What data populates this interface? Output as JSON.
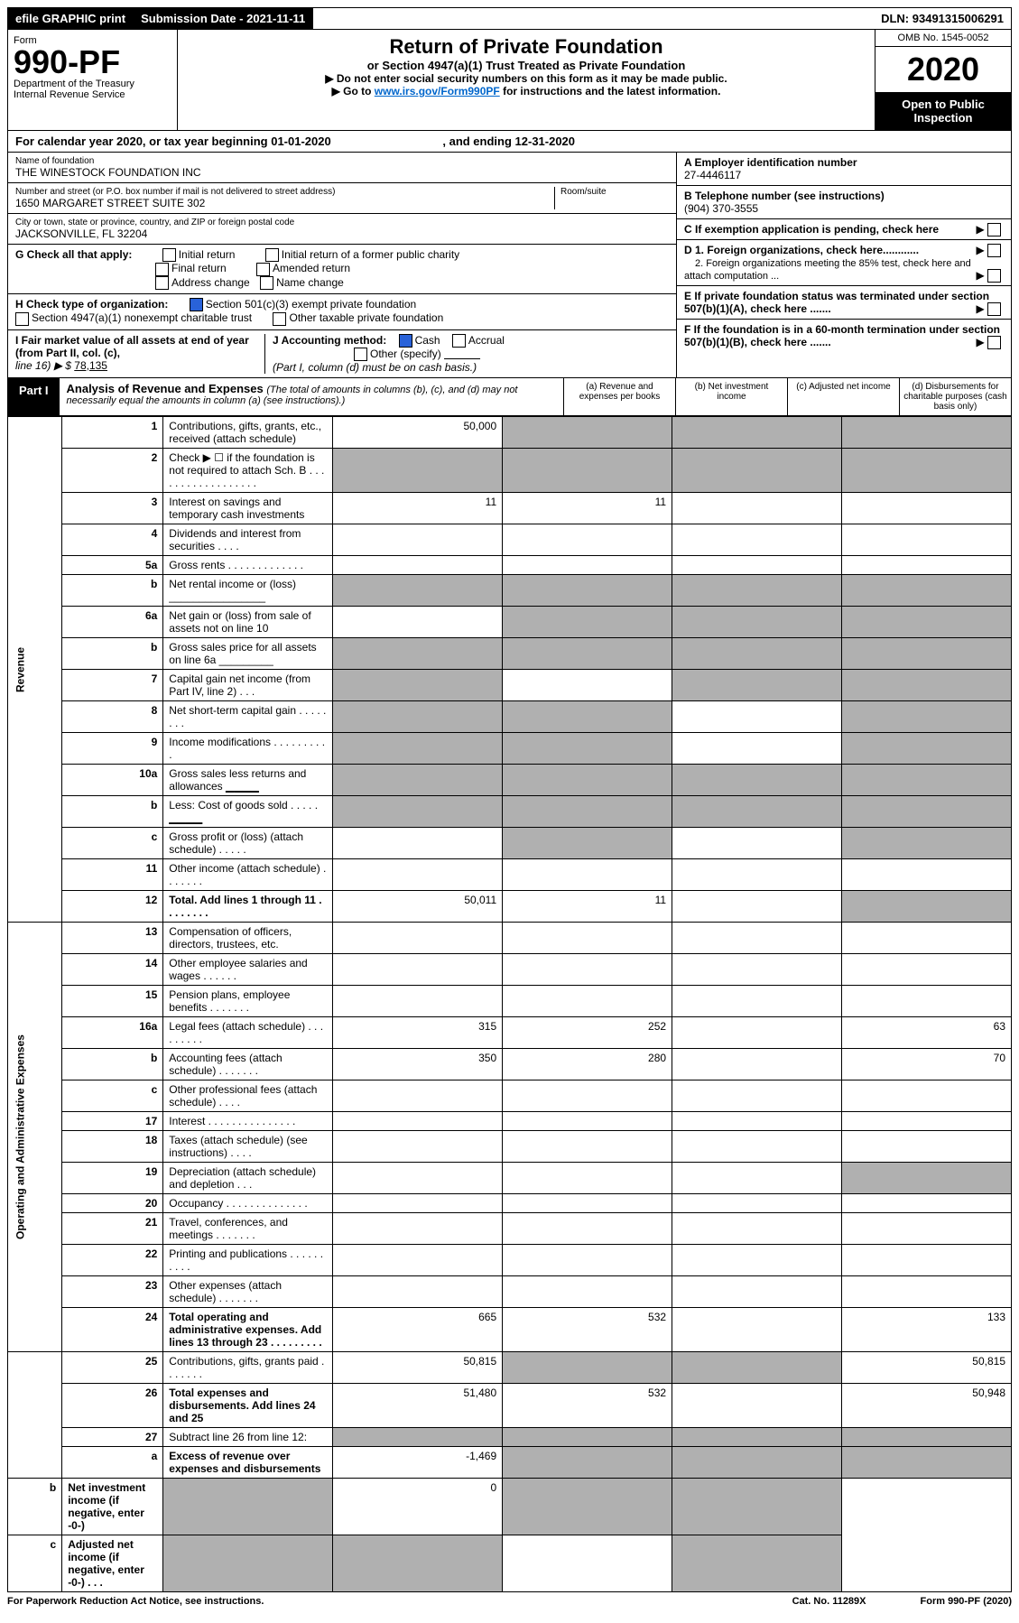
{
  "top": {
    "efile": "efile GRAPHIC print",
    "subdate_lbl": "Submission Date - ",
    "subdate": "2021-11-11",
    "dln_lbl": "DLN: ",
    "dln": "93491315006291"
  },
  "header": {
    "form_lbl": "Form",
    "form_no": "990-PF",
    "dept1": "Department of the Treasury",
    "dept2": "Internal Revenue Service",
    "title": "Return of Private Foundation",
    "subtitle": "or Section 4947(a)(1) Trust Treated as Private Foundation",
    "instr1": "▶ Do not enter social security numbers on this form as it may be made public.",
    "instr2a": "▶ Go to ",
    "instr2_link": "www.irs.gov/Form990PF",
    "instr2b": " for instructions and the latest information.",
    "omb": "OMB No. 1545-0052",
    "year": "2020",
    "open": "Open to Public Inspection"
  },
  "calyr": {
    "a": "For calendar year 2020, or tax year beginning 01-01-2020",
    "b": ", and ending 12-31-2020"
  },
  "id": {
    "name_lbl": "Name of foundation",
    "name": "THE WINESTOCK FOUNDATION INC",
    "addr_lbl": "Number and street (or P.O. box number if mail is not delivered to street address)",
    "addr": "1650 MARGARET STREET SUITE 302",
    "room_lbl": "Room/suite",
    "city_lbl": "City or town, state or province, country, and ZIP or foreign postal code",
    "city": "JACKSONVILLE, FL  32204",
    "ein_lbl": "A Employer identification number",
    "ein": "27-4446117",
    "tel_lbl": "B Telephone number (see instructions)",
    "tel": "(904) 370-3555",
    "c": "C  If exemption application is pending, check here",
    "d1": "D 1. Foreign organizations, check here............",
    "d2": "2. Foreign organizations meeting the 85% test, check here and attach computation ...",
    "e": "E  If private foundation status was terminated under section 507(b)(1)(A), check here .......",
    "f": "F  If the foundation is in a 60-month termination under section 507(b)(1)(B), check here .......",
    "g_lbl": "G Check all that apply:",
    "g_opts": [
      "Initial return",
      "Final return",
      "Address change",
      "Initial return of a former public charity",
      "Amended return",
      "Name change"
    ],
    "h_lbl": "H Check type of organization:",
    "h_opts": [
      "Section 501(c)(3) exempt private foundation",
      "Section 4947(a)(1) nonexempt charitable trust",
      "Other taxable private foundation"
    ],
    "i_lbl": "I Fair market value of all assets at end of year (from Part II, col. (c),",
    "i_line16": "line 16) ▶ $",
    "i_val": "78,135",
    "j_lbl": "J Accounting method:",
    "j_opts": [
      "Cash",
      "Accrual",
      "Other (specify)"
    ],
    "j_note": "(Part I, column (d) must be on cash basis.)"
  },
  "part1": {
    "tag": "Part I",
    "title": "Analysis of Revenue and Expenses ",
    "note": "(The total of amounts in columns (b), (c), and (d) may not necessarily equal the amounts in column (a) (see instructions).)",
    "cols": [
      "(a)   Revenue and expenses per books",
      "(b)   Net investment income",
      "(c)   Adjusted net income",
      "(d)   Disbursements for charitable purposes (cash basis only)"
    ]
  },
  "sections": {
    "rev": "Revenue",
    "op": "Operating and Administrative Expenses"
  },
  "rows": [
    {
      "n": "1",
      "d": "Contributions, gifts, grants, etc., received (attach schedule)",
      "a": "50,000",
      "grey": [
        1,
        2,
        3
      ]
    },
    {
      "n": "2",
      "d": "Check ▶ ☐ if the foundation is not required to attach Sch. B  .  .  .  .  .  .  .  .  .  .  .  .  .  .  .  .  .  .",
      "grey_all": true
    },
    {
      "n": "3",
      "d": "Interest on savings and temporary cash investments",
      "a": "11",
      "b": "11"
    },
    {
      "n": "4",
      "d": "Dividends and interest from securities   .   .   .   ."
    },
    {
      "n": "5a",
      "d": "Gross rents   .   .   .   .   .   .   .   .   .   .   .   .   ."
    },
    {
      "n": "b",
      "d": "Net rental income or (loss)  ________________",
      "grey_all": true
    },
    {
      "n": "6a",
      "d": "Net gain or (loss) from sale of assets not on line 10",
      "grey": [
        1,
        2,
        3
      ]
    },
    {
      "n": "b",
      "d": "Gross sales price for all assets on line 6a _________",
      "grey_all": true
    },
    {
      "n": "7",
      "d": "Capital gain net income (from Part IV, line 2)   .   .   .",
      "grey": [
        0,
        2,
        3
      ]
    },
    {
      "n": "8",
      "d": "Net short-term capital gain  .   .   .   .   .   .   .   .",
      "grey": [
        0,
        1,
        3
      ]
    },
    {
      "n": "9",
      "d": "Income modifications  .   .   .   .   .   .   .   .   .   .",
      "grey": [
        0,
        1,
        3
      ]
    },
    {
      "n": "10a",
      "d": "Gross sales less returns and allowances  ▁▁▁▁",
      "grey_all": true
    },
    {
      "n": "b",
      "d": "Less: Cost of goods sold   .   .   .   .   .  ▁▁▁▁",
      "grey_all": true
    },
    {
      "n": "c",
      "d": "Gross profit or (loss) (attach schedule)   .   .   .   .   .",
      "grey": [
        1,
        3
      ]
    },
    {
      "n": "11",
      "d": "Other income (attach schedule)   .   .   .   .   .   .   ."
    },
    {
      "n": "12",
      "d": "Total. Add lines 1 through 11  .   .   .   .   .   .   .   .",
      "bold": true,
      "a": "50,011",
      "b": "11",
      "grey": [
        3
      ]
    },
    {
      "n": "13",
      "d": "Compensation of officers, directors, trustees, etc."
    },
    {
      "n": "14",
      "d": "Other employee salaries and wages  .   .   .   .   .   ."
    },
    {
      "n": "15",
      "d": "Pension plans, employee benefits  .   .   .   .   .   .   ."
    },
    {
      "n": "16a",
      "d": "Legal fees (attach schedule) .   .   .   .   .   .   .   .   .",
      "a": "315",
      "b": "252",
      "dd": "63"
    },
    {
      "n": "b",
      "d": "Accounting fees (attach schedule)  .   .   .   .   .   .   .",
      "a": "350",
      "b": "280",
      "dd": "70"
    },
    {
      "n": "c",
      "d": "Other professional fees (attach schedule)   .   .   .   ."
    },
    {
      "n": "17",
      "d": "Interest  .   .   .   .   .   .   .   .   .   .   .   .   .   .   ."
    },
    {
      "n": "18",
      "d": "Taxes (attach schedule) (see instructions)   .   .   .   ."
    },
    {
      "n": "19",
      "d": "Depreciation (attach schedule) and depletion   .   .   .",
      "grey": [
        3
      ]
    },
    {
      "n": "20",
      "d": "Occupancy .   .   .   .   .   .   .   .   .   .   .   .   .   ."
    },
    {
      "n": "21",
      "d": "Travel, conferences, and meetings .   .   .   .   .   .   ."
    },
    {
      "n": "22",
      "d": "Printing and publications .   .   .   .   .   .   .   .   .   ."
    },
    {
      "n": "23",
      "d": "Other expenses (attach schedule)  .   .   .   .   .   .   ."
    },
    {
      "n": "24",
      "d": "Total operating and administrative expenses. Add lines 13 through 23  .   .   .   .   .   .   .   .   .",
      "bold": true,
      "a": "665",
      "b": "532",
      "dd": "133"
    },
    {
      "n": "25",
      "d": "Contributions, gifts, grants paid   .   .   .   .   .   .   .",
      "a": "50,815",
      "grey": [
        1,
        2
      ],
      "dd": "50,815"
    },
    {
      "n": "26",
      "d": "Total expenses and disbursements. Add lines 24 and 25",
      "bold": true,
      "a": "51,480",
      "b": "532",
      "dd": "50,948"
    },
    {
      "n": "27",
      "d": "Subtract line 26 from line 12:",
      "grey_all": true
    },
    {
      "n": "a",
      "d": "Excess of revenue over expenses and disbursements",
      "bold": true,
      "a": "-1,469",
      "grey": [
        1,
        2,
        3
      ]
    },
    {
      "n": "b",
      "d": "Net investment income (if negative, enter -0-)",
      "bold": true,
      "b": "0",
      "grey": [
        0,
        2,
        3
      ]
    },
    {
      "n": "c",
      "d": "Adjusted net income (if negative, enter -0-)   .   .   .",
      "bold": true,
      "grey": [
        0,
        1,
        3
      ]
    }
  ],
  "footer": {
    "left": "For Paperwork Reduction Act Notice, see instructions.",
    "mid": "Cat. No. 11289X",
    "right": "Form 990-PF (2020)"
  }
}
